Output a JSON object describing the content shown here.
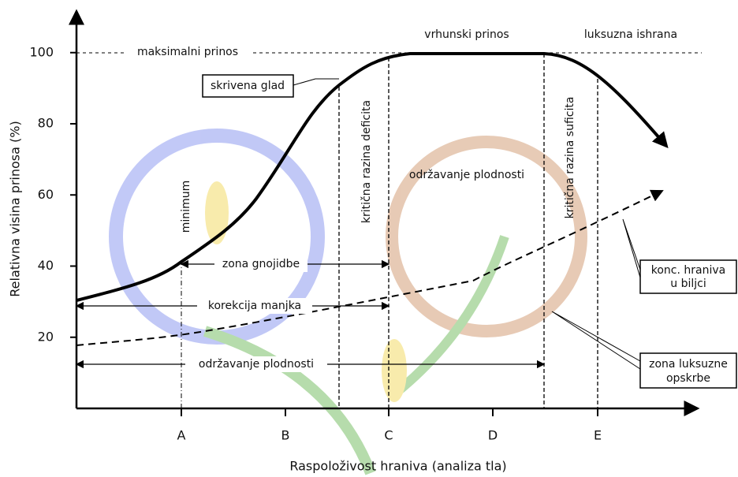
{
  "y_label": "Relativna visina prinosa (%)",
  "x_label": "Raspoloživost hraniva (analiza tla)",
  "yticks": [
    100,
    80,
    60,
    40,
    20
  ],
  "categories": [
    "A",
    "B",
    "C",
    "D",
    "E"
  ],
  "annotations": {
    "max_yield": "maksimalni prinos",
    "peak_yield": "vrhunski prinos",
    "luxury": "luksuzna ishrana",
    "hidden_hunger": "skrivena glad",
    "minimum": "minimum",
    "critical_deficit": "kritična razina deficita",
    "maintenance_top": "održavanje plodnosti",
    "critical_sufficit": "kritična razina suficita",
    "fertilization_zone": "zona gnojidbe",
    "deficit_correction": "korekcija manjka",
    "maintenance_bottom": "održavanje plodnosti",
    "plant_conc": [
      "konc. hraniva",
      "u biljci"
    ],
    "luxury_zone": [
      "zona luksuzne",
      "opskrbe"
    ]
  }
}
